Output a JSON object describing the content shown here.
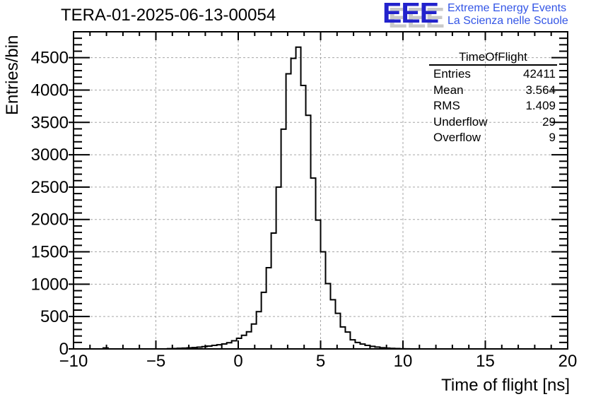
{
  "header": {
    "title": "TERA-01-2025-06-13-00054"
  },
  "logo": {
    "eee": "EEE",
    "tagline_line1": "Extreme Energy Events",
    "tagline_line2": "La Scienza nelle Scuole",
    "eee_color": "#2222cc",
    "tagline_color": "#3355e6"
  },
  "stats": {
    "title": "TimeOfFlight",
    "rows": [
      {
        "label": "Entries",
        "value": "42411"
      },
      {
        "label": "Mean",
        "value": "3.564"
      },
      {
        "label": "RMS",
        "value": "1.409"
      },
      {
        "label": "Underflow",
        "value": "29"
      },
      {
        "label": "Overflow",
        "value": "9"
      }
    ]
  },
  "chart_data": {
    "type": "bar",
    "subtype": "step-histogram",
    "title": "TERA-01-2025-06-13-00054",
    "xlabel": "Time of flight [ns]",
    "ylabel": "Entries/bin",
    "xlim": [
      -10,
      20
    ],
    "ylim": [
      0,
      4900
    ],
    "grid": true,
    "legend": "none",
    "x_major_ticks": [
      -10,
      -5,
      0,
      5,
      10,
      15,
      20
    ],
    "x_tick_labels": [
      "−10",
      "−5",
      "0",
      "5",
      "10",
      "15",
      "20"
    ],
    "x_minor_step": 1,
    "y_major_ticks": [
      0,
      500,
      1000,
      1500,
      2000,
      2500,
      3000,
      3500,
      4000,
      4500
    ],
    "y_tick_labels": [
      "0",
      "500",
      "1000",
      "1500",
      "2000",
      "2500",
      "3000",
      "3500",
      "4000",
      "4500"
    ],
    "y_minor_step": 100,
    "bin_start": -10,
    "bin_width": 0.3,
    "bin_values": [
      0,
      0,
      0,
      0,
      0,
      0,
      15,
      0,
      0,
      0,
      0,
      0,
      0,
      0,
      0,
      0,
      0,
      0,
      0,
      4,
      6,
      9,
      12,
      16,
      21,
      27,
      35,
      44,
      54,
      64,
      76,
      95,
      125,
      163,
      210,
      265,
      385,
      575,
      875,
      1255,
      1790,
      2500,
      3395,
      4250,
      4490,
      4663,
      4070,
      3610,
      2640,
      1990,
      1500,
      1010,
      760,
      550,
      340,
      260,
      140,
      100,
      75,
      55,
      40,
      28,
      18,
      12,
      8,
      5,
      3,
      2,
      0,
      0,
      0,
      0,
      0,
      0,
      0,
      0,
      0,
      0,
      0,
      0,
      0,
      0,
      0,
      0,
      0,
      0,
      0,
      0,
      0,
      0,
      0,
      0,
      0,
      0,
      0,
      0,
      0,
      0,
      0,
      0
    ],
    "peak_bin": {
      "range": [
        3.5,
        3.8
      ],
      "value": 4663
    },
    "colors": {
      "histogram": "#000000",
      "frame": "#000000",
      "grid": "#a6a6a6"
    }
  }
}
